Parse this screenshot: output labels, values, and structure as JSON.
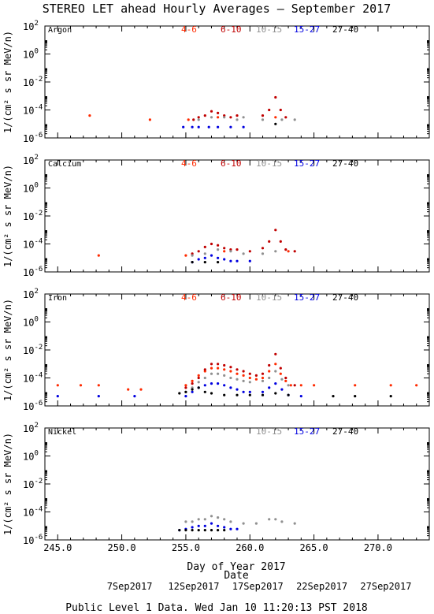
{
  "title": "STEREO LET ahead Hourly Averages – September 2017",
  "ylabel": "1/(cm² s sr MeV/n)",
  "xlabel": "Day of Year 2017",
  "date_label": "Date",
  "footer": "Public Level 1 Data. Wed Jan 10 11:20:13 PST 2018",
  "x_ticks": [
    "245.0",
    "250.0",
    "255.0",
    "260.0",
    "265.0",
    "270.0"
  ],
  "date_ticks": [
    "7Sep2017",
    "12Sep2017",
    "17Sep2017",
    "22Sep2017",
    "27Sep2017"
  ],
  "y_ticks": [
    {
      "base": "10",
      "exp": "2"
    },
    {
      "base": "10",
      "exp": "0"
    },
    {
      "base": "10",
      "exp": "-2"
    },
    {
      "base": "10",
      "exp": "-4"
    },
    {
      "base": "10",
      "exp": "-6"
    }
  ],
  "colors": {
    "4-6": "#ff2a00",
    "6-10": "#c00000",
    "10-15": "#909090",
    "15-27": "#0000e0",
    "27-40": "#000000"
  },
  "chart_data": [
    {
      "type": "scatter",
      "panel": "Argon",
      "legend": [
        "4-6",
        "6-10",
        "10-15",
        "15-27",
        "27-40"
      ],
      "xlim": [
        244,
        274
      ],
      "ylim_log10": [
        -6,
        2
      ],
      "y_scale": "log",
      "series": [
        {
          "name": "4-6",
          "points": [
            [
              247.5,
              4e-05
            ],
            [
              252.2,
              2e-05
            ],
            [
              255.2,
              2e-05
            ],
            [
              257.5,
              3e-05
            ],
            [
              262.0,
              3e-05
            ]
          ]
        },
        {
          "name": "6-10",
          "points": [
            [
              255.6,
              2e-05
            ],
            [
              256.0,
              3e-05
            ],
            [
              256.5,
              4e-05
            ],
            [
              257.0,
              8e-05
            ],
            [
              257.5,
              6e-05
            ],
            [
              258.0,
              4e-05
            ],
            [
              258.5,
              3e-05
            ],
            [
              259.0,
              4e-05
            ],
            [
              261.0,
              4e-05
            ],
            [
              261.5,
              0.0001
            ],
            [
              262.0,
              0.0008
            ],
            [
              262.4,
              0.0001
            ],
            [
              262.8,
              3e-05
            ]
          ]
        },
        {
          "name": "10-15",
          "points": [
            [
              256.0,
              2e-05
            ],
            [
              257.0,
              3e-05
            ],
            [
              258.0,
              3e-05
            ],
            [
              259.0,
              2e-05
            ],
            [
              259.5,
              3e-05
            ],
            [
              261.0,
              2e-05
            ],
            [
              262.5,
              2e-05
            ],
            [
              263.5,
              2e-05
            ]
          ]
        },
        {
          "name": "15-27",
          "points": [
            [
              254.8,
              6e-06
            ],
            [
              255.5,
              6e-06
            ],
            [
              256.0,
              6e-06
            ],
            [
              256.8,
              6e-06
            ],
            [
              257.5,
              6e-06
            ],
            [
              258.5,
              6e-06
            ],
            [
              259.5,
              6e-06
            ]
          ]
        },
        {
          "name": "27-40",
          "points": [
            [
              262.0,
              1e-05
            ]
          ]
        }
      ]
    },
    {
      "type": "scatter",
      "panel": "Calcium",
      "legend": [
        "4-6",
        "6-10",
        "10-15",
        "15-27",
        "27-40"
      ],
      "xlim": [
        244,
        274
      ],
      "ylim_log10": [
        -6,
        2
      ],
      "y_scale": "log",
      "series": [
        {
          "name": "4-6",
          "points": [
            [
              248.2,
              1.5e-05
            ],
            [
              255.0,
              1.5e-05
            ],
            [
              258.0,
              3e-05
            ],
            [
              263.0,
              3e-05
            ]
          ]
        },
        {
          "name": "6-10",
          "points": [
            [
              255.5,
              2e-05
            ],
            [
              256.0,
              3e-05
            ],
            [
              256.5,
              6e-05
            ],
            [
              257.0,
              0.0001
            ],
            [
              257.5,
              8e-05
            ],
            [
              258.0,
              5e-05
            ],
            [
              258.5,
              4e-05
            ],
            [
              259.0,
              4e-05
            ],
            [
              260.0,
              3e-05
            ],
            [
              261.0,
              5e-05
            ],
            [
              261.5,
              0.00015
            ],
            [
              262.0,
              0.001
            ],
            [
              262.4,
              0.00015
            ],
            [
              262.8,
              4e-05
            ],
            [
              263.5,
              3e-05
            ]
          ]
        },
        {
          "name": "10-15",
          "points": [
            [
              255.5,
              1.5e-05
            ],
            [
              256.5,
              2e-05
            ],
            [
              257.5,
              4e-05
            ],
            [
              258.5,
              3e-05
            ],
            [
              259.5,
              2e-05
            ],
            [
              261.0,
              2e-05
            ],
            [
              262.0,
              3e-05
            ]
          ]
        },
        {
          "name": "15-27",
          "points": [
            [
              255.5,
              5e-06
            ],
            [
              256.0,
              8e-06
            ],
            [
              256.5,
              1e-05
            ],
            [
              257.0,
              1.5e-05
            ],
            [
              257.5,
              1e-05
            ],
            [
              258.0,
              8e-06
            ],
            [
              258.5,
              6e-06
            ],
            [
              259.0,
              6e-06
            ],
            [
              260.0,
              6e-06
            ]
          ]
        },
        {
          "name": "27-40",
          "points": [
            [
              255.5,
              5e-06
            ],
            [
              256.5,
              5e-06
            ],
            [
              257.5,
              5e-06
            ]
          ]
        }
      ]
    },
    {
      "type": "scatter",
      "panel": "Iron",
      "legend": [
        "4-6",
        "6-10",
        "10-15",
        "15-27",
        "27-40"
      ],
      "xlim": [
        244,
        274
      ],
      "ylim_log10": [
        -6,
        2
      ],
      "y_scale": "log",
      "series": [
        {
          "name": "4-6",
          "points": [
            [
              245.0,
              3e-05
            ],
            [
              246.8,
              3e-05
            ],
            [
              248.2,
              3e-05
            ],
            [
              250.5,
              1.5e-05
            ],
            [
              251.5,
              1.5e-05
            ],
            [
              255.0,
              3e-05
            ],
            [
              255.5,
              6e-05
            ],
            [
              256.0,
              0.00015
            ],
            [
              256.5,
              0.0003
            ],
            [
              257.0,
              0.0005
            ],
            [
              257.5,
              0.0005
            ],
            [
              258.0,
              0.0004
            ],
            [
              258.5,
              0.0003
            ],
            [
              259.0,
              0.0002
            ],
            [
              259.5,
              0.00015
            ],
            [
              260.0,
              0.0001
            ],
            [
              260.5,
              8e-05
            ],
            [
              261.0,
              0.0001
            ],
            [
              261.5,
              0.0003
            ],
            [
              262.0,
              0.001
            ],
            [
              262.4,
              0.0002
            ],
            [
              262.8,
              6e-05
            ],
            [
              263.2,
              3e-05
            ],
            [
              264.0,
              3e-05
            ],
            [
              265.0,
              3e-05
            ],
            [
              268.2,
              3e-05
            ],
            [
              271.0,
              3e-05
            ],
            [
              273.0,
              3e-05
            ]
          ]
        },
        {
          "name": "6-10",
          "points": [
            [
              255.0,
              2e-05
            ],
            [
              255.5,
              4e-05
            ],
            [
              256.0,
              0.0001
            ],
            [
              256.5,
              0.0004
            ],
            [
              257.0,
              0.001
            ],
            [
              257.5,
              0.001
            ],
            [
              258.0,
              0.0008
            ],
            [
              258.5,
              0.0006
            ],
            [
              259.0,
              0.0004
            ],
            [
              259.5,
              0.0003
            ],
            [
              260.0,
              0.0002
            ],
            [
              260.5,
              0.00015
            ],
            [
              261.0,
              0.0002
            ],
            [
              261.5,
              0.0008
            ],
            [
              262.0,
              0.005
            ],
            [
              262.4,
              0.0005
            ],
            [
              262.8,
              0.0001
            ],
            [
              263.5,
              3e-05
            ]
          ]
        },
        {
          "name": "10-15",
          "points": [
            [
              255.0,
              1e-05
            ],
            [
              255.5,
              2e-05
            ],
            [
              256.0,
              5e-05
            ],
            [
              256.5,
              0.0001
            ],
            [
              257.0,
              0.0002
            ],
            [
              257.5,
              0.0002
            ],
            [
              258.0,
              0.00015
            ],
            [
              258.5,
              0.0001
            ],
            [
              259.0,
              8e-05
            ],
            [
              259.5,
              6e-05
            ],
            [
              260.0,
              5e-05
            ],
            [
              261.0,
              6e-05
            ],
            [
              261.5,
              0.0001
            ],
            [
              262.0,
              0.0003
            ],
            [
              262.5,
              8e-05
            ],
            [
              263.0,
              3e-05
            ]
          ]
        },
        {
          "name": "15-27",
          "points": [
            [
              245.0,
              5e-06
            ],
            [
              248.2,
              5e-06
            ],
            [
              251.0,
              5e-06
            ],
            [
              255.0,
              5e-06
            ],
            [
              255.5,
              1e-05
            ],
            [
              256.0,
              2e-05
            ],
            [
              256.5,
              3e-05
            ],
            [
              257.0,
              4e-05
            ],
            [
              257.5,
              4e-05
            ],
            [
              258.0,
              3e-05
            ],
            [
              258.5,
              2e-05
            ],
            [
              259.0,
              1.5e-05
            ],
            [
              259.5,
              1e-05
            ],
            [
              260.0,
              1e-05
            ],
            [
              261.0,
              1e-05
            ],
            [
              261.5,
              2e-05
            ],
            [
              262.0,
              4e-05
            ],
            [
              262.5,
              1.5e-05
            ],
            [
              263.0,
              6e-06
            ],
            [
              264.0,
              5e-06
            ]
          ]
        },
        {
          "name": "27-40",
          "points": [
            [
              254.5,
              8e-06
            ],
            [
              255.0,
              1e-05
            ],
            [
              255.5,
              1.5e-05
            ],
            [
              256.0,
              2e-05
            ],
            [
              256.5,
              1e-05
            ],
            [
              257.0,
              8e-06
            ],
            [
              258.0,
              6e-06
            ],
            [
              259.0,
              6e-06
            ],
            [
              260.0,
              6e-06
            ],
            [
              261.0,
              6e-06
            ],
            [
              262.0,
              8e-06
            ],
            [
              263.0,
              6e-06
            ],
            [
              266.5,
              5e-06
            ],
            [
              268.2,
              5e-06
            ],
            [
              271.0,
              5e-06
            ]
          ]
        }
      ]
    },
    {
      "type": "scatter",
      "panel": "Nickel",
      "legend": [
        "10-15",
        "15-27",
        "27-40"
      ],
      "xlim": [
        244,
        274
      ],
      "ylim_log10": [
        -6,
        2
      ],
      "y_scale": "log",
      "series": [
        {
          "name": "10-15",
          "points": [
            [
              255.0,
              2e-05
            ],
            [
              255.5,
              2e-05
            ],
            [
              256.0,
              3e-05
            ],
            [
              256.5,
              3e-05
            ],
            [
              257.0,
              5e-05
            ],
            [
              257.5,
              4e-05
            ],
            [
              258.0,
              3e-05
            ],
            [
              258.5,
              2e-05
            ],
            [
              259.5,
              1.5e-05
            ],
            [
              260.5,
              1.5e-05
            ],
            [
              261.5,
              3e-05
            ],
            [
              262.0,
              3e-05
            ],
            [
              262.5,
              2e-05
            ],
            [
              263.5,
              1.5e-05
            ]
          ]
        },
        {
          "name": "15-27",
          "points": [
            [
              254.5,
              5e-06
            ],
            [
              255.0,
              6e-06
            ],
            [
              255.5,
              8e-06
            ],
            [
              256.0,
              1e-05
            ],
            [
              256.5,
              1e-05
            ],
            [
              257.0,
              1.5e-05
            ],
            [
              257.5,
              1e-05
            ],
            [
              258.0,
              8e-06
            ],
            [
              258.5,
              6e-06
            ],
            [
              259.0,
              6e-06
            ]
          ]
        },
        {
          "name": "27-40",
          "points": [
            [
              254.5,
              5e-06
            ],
            [
              255.0,
              5e-06
            ],
            [
              255.5,
              5e-06
            ],
            [
              256.0,
              5e-06
            ],
            [
              256.5,
              5e-06
            ],
            [
              257.0,
              5e-06
            ],
            [
              257.5,
              5e-06
            ],
            [
              258.0,
              5e-06
            ]
          ]
        }
      ]
    }
  ]
}
